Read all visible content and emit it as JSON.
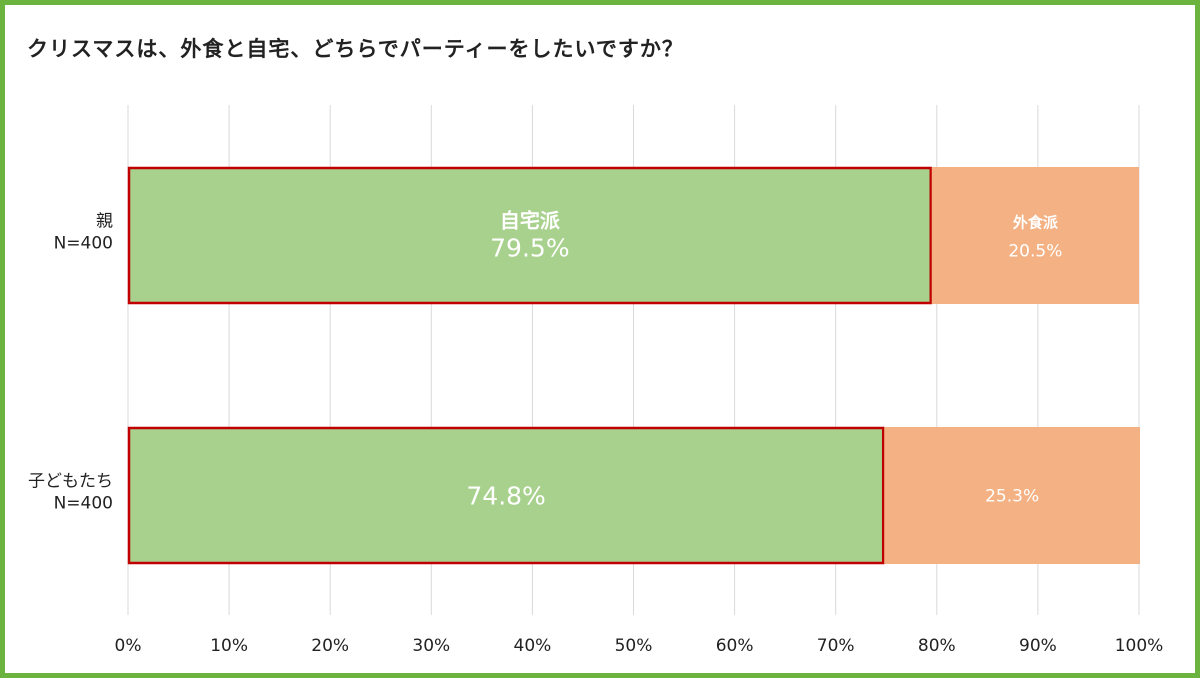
{
  "chart_data": {
    "type": "bar",
    "stacked": true,
    "orientation": "horizontal",
    "title": "クリスマスは、外食と自宅、どちらでパーティーをしたいですか？",
    "categories": [
      [
        "親",
        "N=400"
      ],
      [
        "子どもたち",
        "N=400"
      ]
    ],
    "series": [
      {
        "name": "自宅派",
        "values": [
          79.5,
          74.8
        ],
        "color": "#a8d18d",
        "highlight_border": "#c00000",
        "value_labels": [
          "79.5%",
          "74.8%"
        ],
        "segment_labels": [
          "自宅派",
          ""
        ]
      },
      {
        "name": "外食派",
        "values": [
          20.5,
          25.3
        ],
        "color": "#f4b183",
        "value_labels": [
          "20.5%",
          "25.3%"
        ],
        "segment_labels": [
          "外食派",
          ""
        ]
      }
    ],
    "xlim": [
      0,
      100
    ],
    "xticks": [
      "0%",
      "10%",
      "20%",
      "30%",
      "40%",
      "50%",
      "60%",
      "70%",
      "80%",
      "90%",
      "100%"
    ],
    "grid": true,
    "legend": "none"
  }
}
